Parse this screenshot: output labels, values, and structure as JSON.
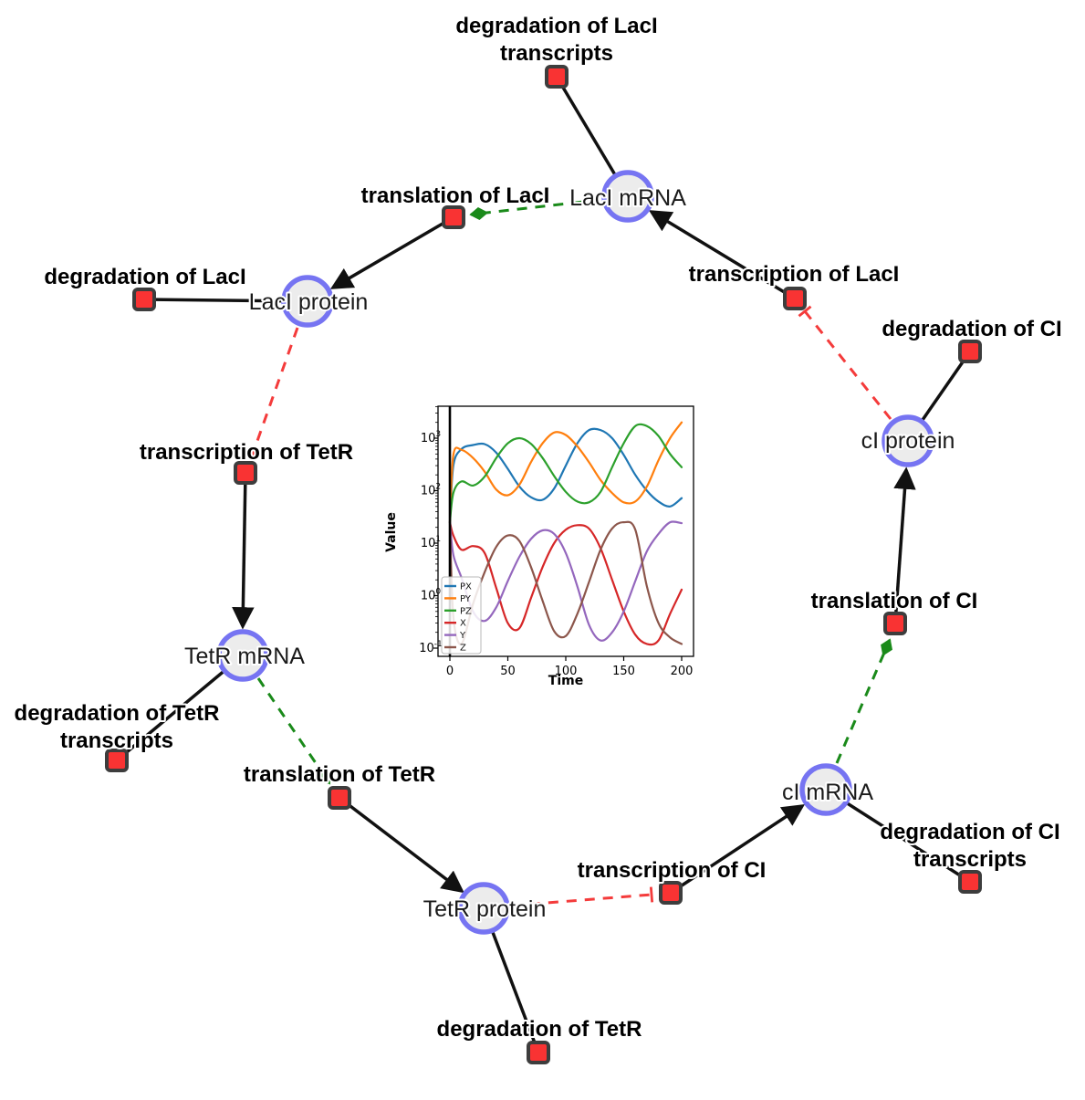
{
  "diagram": {
    "species": {
      "laci_mrna": "LacI mRNA",
      "laci_protein": "LacI protein",
      "ci_protein": "cI protein",
      "tetr_mrna": "TetR mRNA",
      "ci_mrna": "cI mRNA",
      "tetr_protein": "TetR protein"
    },
    "reactions": {
      "deg_laci_tx_line1": "degradation of LacI",
      "deg_laci_tx_line2": "transcripts",
      "transl_laci": "translation of LacI",
      "deg_laci": "degradation of LacI",
      "tx_laci": "transcription of LacI",
      "deg_ci": "degradation of CI",
      "tx_tetr": "transcription of TetR",
      "deg_tetr_tx_line1": "degradation of TetR",
      "deg_tetr_tx_line2": "transcripts",
      "transl_tetr": "translation of TetR",
      "tx_ci": "transcription of CI",
      "deg_ci_tx_line1": "degradation of CI",
      "deg_ci_tx_line2": "transcripts",
      "transl_ci": "translation of CI",
      "deg_tetr": "degradation of TetR"
    },
    "colors": {
      "species_fill": "#ececec",
      "species_border": "#7674f2",
      "reaction_fill": "#f93333",
      "reaction_border": "#3d3d3d",
      "edge_reaction": "#111111",
      "edge_modifier": "#1a8a1a",
      "edge_inhibition": "#f43b3b"
    }
  },
  "chart_data": {
    "type": "line",
    "title": "",
    "xlabel": "Time",
    "ylabel": "Value",
    "y_scale": "log",
    "x_ticks": [
      0,
      50,
      100,
      150,
      200
    ],
    "y_tick_exponents": [
      -1,
      0,
      1,
      2,
      3
    ],
    "xlim": [
      -10,
      210
    ],
    "ylim": [
      0.07,
      4000
    ],
    "event_line_x": 0,
    "grid": false,
    "legend_position": "lower left",
    "x": [
      0,
      3,
      10,
      20,
      30,
      40,
      50,
      60,
      70,
      80,
      90,
      100,
      110,
      120,
      130,
      140,
      150,
      160,
      170,
      180,
      190,
      200
    ],
    "series": [
      {
        "name": "PX",
        "color": "#1f77b4",
        "values": [
          25,
          300,
          620,
          740,
          770,
          530,
          260,
          120,
          75,
          67,
          110,
          300,
          800,
          1420,
          1430,
          1000,
          480,
          200,
          100,
          62,
          50,
          72
        ]
      },
      {
        "name": "PY",
        "color": "#ff7f0e",
        "values": [
          25,
          480,
          600,
          420,
          230,
          105,
          82,
          130,
          350,
          800,
          1280,
          1150,
          700,
          350,
          160,
          90,
          60,
          62,
          120,
          380,
          1000,
          2000
        ]
      },
      {
        "name": "PZ",
        "color": "#2ca02c",
        "values": [
          25,
          90,
          150,
          125,
          185,
          420,
          800,
          1000,
          780,
          420,
          190,
          95,
          62,
          60,
          95,
          280,
          800,
          1700,
          1700,
          1100,
          500,
          280
        ]
      },
      {
        "name": "X",
        "color": "#d62728",
        "values": [
          25,
          14,
          7.5,
          8.8,
          6.5,
          1.4,
          0.3,
          0.24,
          0.9,
          3.5,
          10,
          18,
          22,
          19,
          8,
          2,
          0.5,
          0.18,
          0.12,
          0.14,
          0.45,
          1.3
        ]
      },
      {
        "name": "Y",
        "color": "#9467bd",
        "values": [
          25,
          6,
          2.2,
          0.5,
          0.33,
          0.6,
          1.9,
          5.5,
          12,
          17.5,
          15,
          6.5,
          1.5,
          0.28,
          0.14,
          0.2,
          0.5,
          1.9,
          7,
          15,
          25,
          24
        ]
      },
      {
        "name": "Z",
        "color": "#8c564b",
        "values": [
          25,
          0.4,
          0.12,
          0.7,
          2.8,
          8.5,
          14,
          11,
          3.5,
          0.8,
          0.21,
          0.17,
          0.45,
          1.8,
          7.5,
          19,
          25,
          18,
          1.5,
          0.3,
          0.16,
          0.12
        ]
      }
    ]
  }
}
